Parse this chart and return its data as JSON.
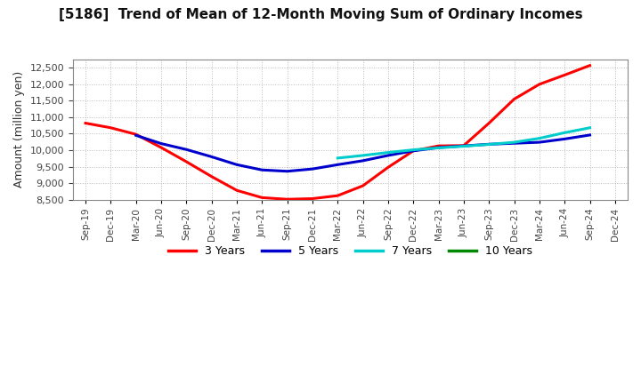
{
  "title": "[5186]  Trend of Mean of 12-Month Moving Sum of Ordinary Incomes",
  "ylabel": "Amount (million yen)",
  "ylim": [
    8500,
    12750
  ],
  "yticks": [
    8500,
    9000,
    9500,
    10000,
    10500,
    11000,
    11500,
    12000,
    12500
  ],
  "background_color": "#ffffff",
  "plot_bg_color": "#ffffff",
  "grid_color": "#bbbbbb",
  "series": {
    "3 Years": {
      "color": "#ff0000",
      "points": [
        [
          "Sep-19",
          10820
        ],
        [
          "Dec-19",
          10680
        ],
        [
          "Mar-20",
          10480
        ],
        [
          "Jun-20",
          10080
        ],
        [
          "Sep-20",
          9650
        ],
        [
          "Dec-20",
          9200
        ],
        [
          "Mar-21",
          8780
        ],
        [
          "Jun-21",
          8560
        ],
        [
          "Sep-21",
          8510
        ],
        [
          "Dec-21",
          8530
        ],
        [
          "Mar-22",
          8620
        ],
        [
          "Jun-22",
          8920
        ],
        [
          "Sep-22",
          9480
        ],
        [
          "Dec-22",
          9980
        ],
        [
          "Mar-23",
          10130
        ],
        [
          "Jun-23",
          10140
        ],
        [
          "Sep-23",
          10820
        ],
        [
          "Dec-23",
          11550
        ],
        [
          "Mar-24",
          12000
        ],
        [
          "Jun-24",
          12280
        ],
        [
          "Sep-24",
          12570
        ]
      ]
    },
    "5 Years": {
      "color": "#0000cc",
      "points": [
        [
          "Sep-19",
          null
        ],
        [
          "Dec-19",
          null
        ],
        [
          "Mar-20",
          10450
        ],
        [
          "Jun-20",
          10200
        ],
        [
          "Sep-20",
          10020
        ],
        [
          "Dec-20",
          9800
        ],
        [
          "Mar-21",
          9560
        ],
        [
          "Jun-21",
          9400
        ],
        [
          "Sep-21",
          9360
        ],
        [
          "Dec-21",
          9430
        ],
        [
          "Mar-22",
          9560
        ],
        [
          "Jun-22",
          9680
        ],
        [
          "Sep-22",
          9840
        ],
        [
          "Dec-22",
          9980
        ],
        [
          "Mar-23",
          10080
        ],
        [
          "Jun-23",
          10130
        ],
        [
          "Sep-23",
          10180
        ],
        [
          "Dec-23",
          10210
        ],
        [
          "Mar-24",
          10240
        ],
        [
          "Jun-24",
          10340
        ],
        [
          "Sep-24",
          10460
        ]
      ]
    },
    "7 Years": {
      "color": "#00cccc",
      "points": [
        [
          "Sep-19",
          null
        ],
        [
          "Dec-19",
          null
        ],
        [
          "Mar-20",
          null
        ],
        [
          "Jun-20",
          null
        ],
        [
          "Sep-20",
          null
        ],
        [
          "Dec-20",
          null
        ],
        [
          "Mar-21",
          null
        ],
        [
          "Jun-21",
          null
        ],
        [
          "Sep-21",
          null
        ],
        [
          "Dec-21",
          null
        ],
        [
          "Mar-22",
          9760
        ],
        [
          "Jun-22",
          9840
        ],
        [
          "Sep-22",
          9930
        ],
        [
          "Dec-22",
          10010
        ],
        [
          "Mar-23",
          10070
        ],
        [
          "Jun-23",
          10120
        ],
        [
          "Sep-23",
          10175
        ],
        [
          "Dec-23",
          10240
        ],
        [
          "Mar-24",
          10360
        ],
        [
          "Jun-24",
          10530
        ],
        [
          "Sep-24",
          10680
        ]
      ]
    },
    "10 Years": {
      "color": "#008800",
      "points": [
        [
          "Sep-19",
          null
        ],
        [
          "Dec-19",
          null
        ],
        [
          "Mar-20",
          null
        ],
        [
          "Jun-20",
          null
        ],
        [
          "Sep-20",
          null
        ],
        [
          "Dec-20",
          null
        ],
        [
          "Mar-21",
          null
        ],
        [
          "Jun-21",
          null
        ],
        [
          "Sep-21",
          null
        ],
        [
          "Dec-21",
          null
        ],
        [
          "Mar-22",
          null
        ],
        [
          "Jun-22",
          null
        ],
        [
          "Sep-22",
          null
        ],
        [
          "Dec-22",
          null
        ],
        [
          "Mar-23",
          null
        ],
        [
          "Jun-23",
          null
        ],
        [
          "Sep-23",
          null
        ],
        [
          "Dec-23",
          null
        ],
        [
          "Mar-24",
          null
        ],
        [
          "Jun-24",
          null
        ],
        [
          "Sep-24",
          null
        ]
      ]
    }
  },
  "x_labels": [
    "Sep-19",
    "Dec-19",
    "Mar-20",
    "Jun-20",
    "Sep-20",
    "Dec-20",
    "Mar-21",
    "Jun-21",
    "Sep-21",
    "Dec-21",
    "Mar-22",
    "Jun-22",
    "Sep-22",
    "Dec-22",
    "Mar-23",
    "Jun-23",
    "Sep-23",
    "Dec-23",
    "Mar-24",
    "Jun-24",
    "Sep-24",
    "Dec-24"
  ],
  "legend_entries": [
    "3 Years",
    "5 Years",
    "7 Years",
    "10 Years"
  ],
  "legend_colors": [
    "#ff0000",
    "#0000cc",
    "#00cccc",
    "#008800"
  ]
}
